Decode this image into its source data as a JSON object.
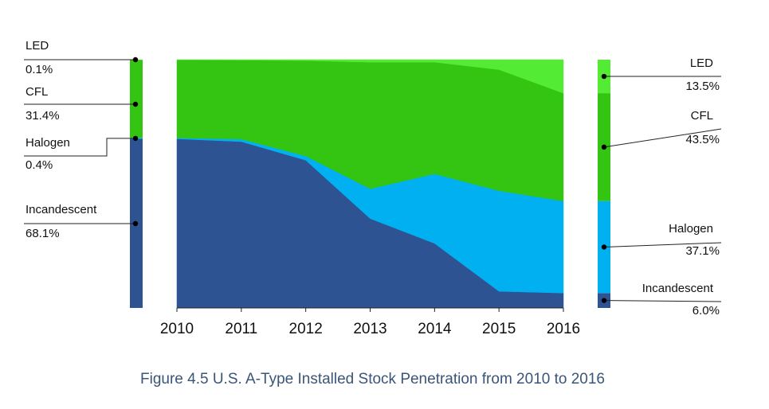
{
  "chart_data": {
    "type": "area",
    "stacked": true,
    "normalized": true,
    "x": [
      2010,
      2011,
      2012,
      2013,
      2014,
      2015,
      2016
    ],
    "series": [
      {
        "name": "Incandescent",
        "color": "#2e5393",
        "values": [
          68.1,
          67.0,
          59.5,
          36.0,
          26.0,
          6.7,
          6.0
        ]
      },
      {
        "name": "Halogen",
        "color": "#00b0f0",
        "values": [
          0.4,
          1.0,
          1.7,
          12.0,
          28.0,
          40.5,
          37.1
        ]
      },
      {
        "name": "CFL",
        "color": "#33c512",
        "values": [
          31.4,
          31.8,
          38.4,
          51.0,
          45.0,
          48.8,
          43.5
        ]
      },
      {
        "name": "LED",
        "color": "#54eb34",
        "values": [
          0.1,
          0.2,
          0.4,
          1.0,
          1.0,
          4.0,
          13.5
        ]
      }
    ],
    "ylim": [
      0,
      100
    ],
    "xlabel": "",
    "ylabel": "",
    "grid": false,
    "left_legend": {
      "year": 2010,
      "entries": [
        {
          "name": "LED",
          "value": "0.1%"
        },
        {
          "name": "CFL",
          "value": "31.4%"
        },
        {
          "name": "Halogen",
          "value": "0.4%"
        },
        {
          "name": "Incandescent",
          "value": "68.1%"
        }
      ]
    },
    "right_legend": {
      "year": 2016,
      "entries": [
        {
          "name": "LED",
          "value": "13.5%"
        },
        {
          "name": "CFL",
          "value": "43.5%"
        },
        {
          "name": "Halogen",
          "value": "37.1%"
        },
        {
          "name": "Incandescent",
          "value": "6.0%"
        }
      ]
    }
  },
  "caption": "Figure 4.5 U.S. A-Type Installed Stock Penetration from 2010 to 2016"
}
